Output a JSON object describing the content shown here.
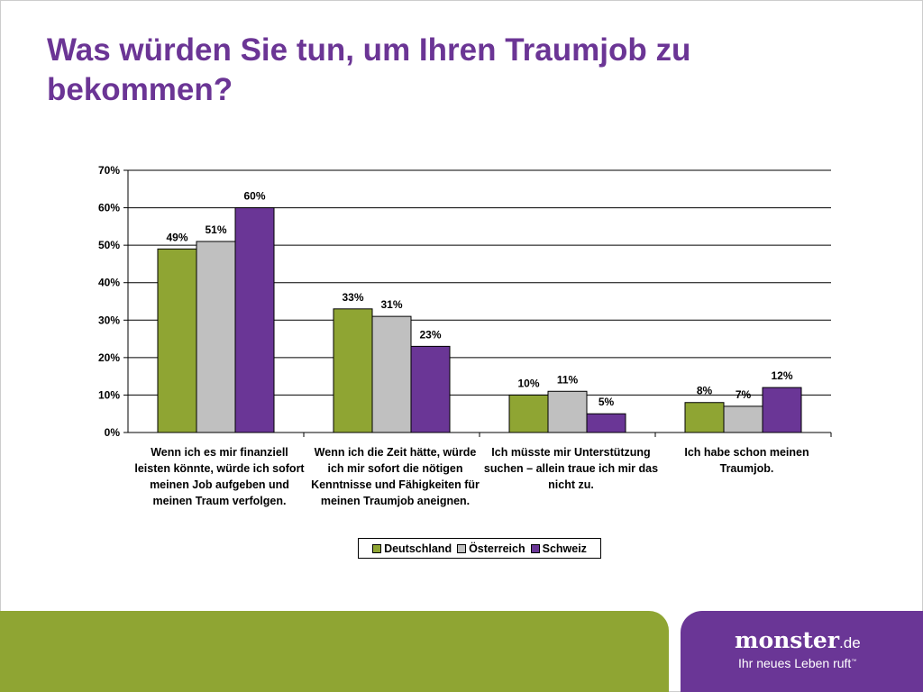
{
  "title": "Was würden Sie tun, um Ihren Traumjob zu bekommen?",
  "chart_data": {
    "type": "bar",
    "categories": [
      "Wenn ich es mir finanziell leisten könnte, würde ich sofort meinen Job aufgeben und meinen Traum verfolgen.",
      "Wenn ich die Zeit hätte, würde ich mir sofort die nötigen Kenntnisse und Fähigkeiten für meinen Traumjob aneignen.",
      "Ich müsste mir Unterstützung suchen – allein traue ich mir das nicht zu.",
      "Ich habe schon meinen Traumjob."
    ],
    "series": [
      {
        "name": "Deutschland",
        "color": "#8fa533",
        "values": [
          49,
          33,
          10,
          8
        ]
      },
      {
        "name": "Österreich",
        "color": "#c0c0c0",
        "values": [
          51,
          31,
          11,
          7
        ]
      },
      {
        "name": "Schweiz",
        "color": "#6a3696",
        "values": [
          60,
          23,
          5,
          12
        ]
      }
    ],
    "yticks": [
      "0%",
      "10%",
      "20%",
      "30%",
      "40%",
      "50%",
      "60%",
      "70%"
    ],
    "ylim": [
      0,
      70
    ],
    "grid": true,
    "legend": "bottom"
  },
  "footer": {
    "logo": "monster",
    "logo_suffix": ".de",
    "tagline": "Ihr neues Leben ruft",
    "tm": "™"
  }
}
